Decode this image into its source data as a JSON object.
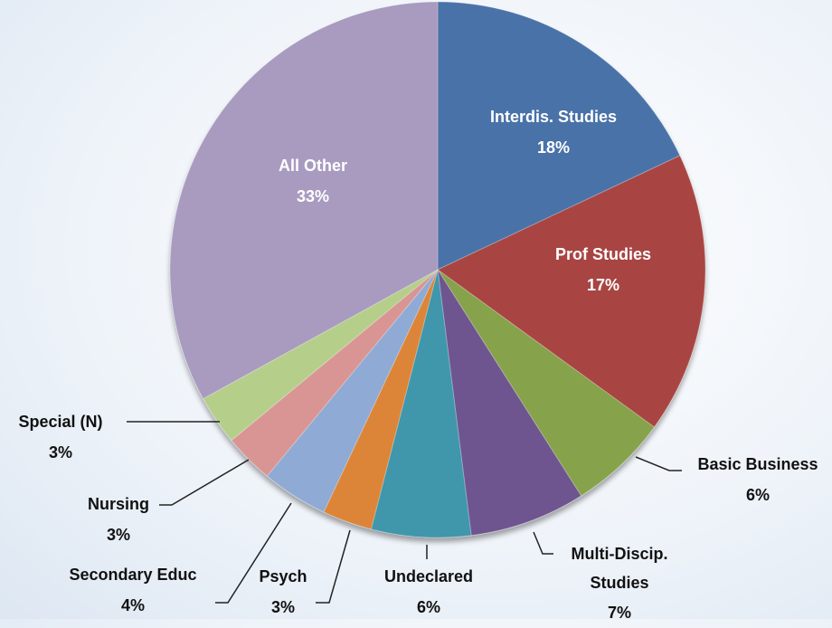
{
  "chart_data": {
    "type": "pie",
    "categories": [
      "Interdis. Studies",
      "Prof Studies",
      "Basic Business",
      "Multi-Discip. Studies",
      "Undeclared",
      "Psych",
      "Secondary Educ",
      "Nursing",
      "Special (N)",
      "All Other"
    ],
    "values": [
      18,
      17,
      6,
      7,
      6,
      3,
      4,
      3,
      3,
      33
    ],
    "value_labels": [
      "18%",
      "17%",
      "6%",
      "7%",
      "6%",
      "3%",
      "4%",
      "3%",
      "3%",
      "33%"
    ],
    "colors": [
      "#4a72a8",
      "#a84543",
      "#86a24b",
      "#6e558f",
      "#3f96ab",
      "#dc8537",
      "#8eaad5",
      "#d99594",
      "#b5cf8b",
      "#a89bbf"
    ]
  }
}
